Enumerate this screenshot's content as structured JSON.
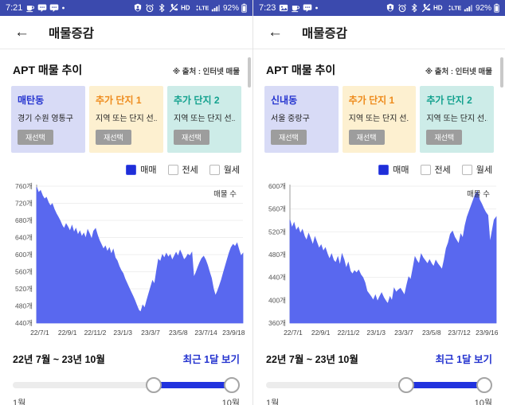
{
  "colors": {
    "statusbar_bg": "#3b4aae",
    "chart_fill": "#5968ef",
    "slider_blue": "#2133de",
    "link_blue": "#2433cf",
    "checkbox_checked": "#1f2ed8",
    "reselect_button_bg": "#9d9d9d"
  },
  "panels": [
    {
      "status": {
        "time": "7:21",
        "battery": "92%",
        "left_icons": [
          "coffee",
          "chat",
          "chat",
          "dot"
        ],
        "right_icons": [
          "shield",
          "alarm",
          "bluetooth",
          "mute",
          "hd",
          "lte",
          "signal"
        ]
      },
      "header": {
        "back_icon": "←",
        "title": "매물증감"
      },
      "section": {
        "title": "APT 매물 추이",
        "source_note": "※ 출처 : 인터넷 매물"
      },
      "cards": [
        {
          "title": "매탄동",
          "subtitle": "경기 수원 영통구",
          "button": "재선택",
          "accent": "#2433cf",
          "bg": "#d8dbf6"
        },
        {
          "title": "추가 단지 1",
          "subtitle": "지역 또는 단지 선...",
          "button": "재선택",
          "accent": "#ee8b1c",
          "bg": "#fdf0d0"
        },
        {
          "title": "추가 단지 2",
          "subtitle": "지역 또는 단지 선...",
          "button": "재선택",
          "accent": "#12a18e",
          "bg": "#cdece8"
        }
      ],
      "legend": {
        "items": [
          {
            "label": "매매",
            "checked": true
          },
          {
            "label": "전세",
            "checked": false
          },
          {
            "label": "월세",
            "checked": false
          }
        ]
      },
      "period": {
        "range": "22년 7월 ~ 23년 10월",
        "recent_button": "최근 1달 보기"
      },
      "slider": {
        "min_label": "1월",
        "max_label": "10월",
        "start_pct": 62,
        "end_pct": 96.5
      }
    },
    {
      "status": {
        "time": "7:23",
        "battery": "92%",
        "left_icons": [
          "photo",
          "coffee",
          "chat",
          "dot"
        ],
        "right_icons": [
          "shield",
          "alarm",
          "bluetooth",
          "mute",
          "hd",
          "lte",
          "signal"
        ]
      },
      "header": {
        "back_icon": "←",
        "title": "매물증감"
      },
      "section": {
        "title": "APT 매물 추이",
        "source_note": "※ 출처 : 인터넷 매물"
      },
      "cards": [
        {
          "title": "신내동",
          "subtitle": "서울 중랑구",
          "button": "재선택",
          "accent": "#2433cf",
          "bg": "#d8dbf6"
        },
        {
          "title": "추가 단지 1",
          "subtitle": "지역 또는 단지 선...",
          "button": "재선택",
          "accent": "#ee8b1c",
          "bg": "#fdf0d0"
        },
        {
          "title": "추가 단지 2",
          "subtitle": "지역 또는 단지 선...",
          "button": "재선택",
          "accent": "#12a18e",
          "bg": "#cdece8"
        }
      ],
      "legend": {
        "items": [
          {
            "label": "매매",
            "checked": true
          },
          {
            "label": "전세",
            "checked": false
          },
          {
            "label": "월세",
            "checked": false
          }
        ]
      },
      "period": {
        "range": "22년 7월 ~ 23년 10월",
        "recent_button": "최근 1달 보기"
      },
      "slider": {
        "min_label": "1월",
        "max_label": "10월",
        "start_pct": 62,
        "end_pct": 96.5
      }
    }
  ],
  "chart_data": [
    {
      "type": "area",
      "title": "APT 매물 추이 - 매탄동 (매매)",
      "annotation": "매물 수",
      "xlabel": "",
      "ylabel": "매물 수",
      "unit": "개",
      "ylim": [
        440,
        760
      ],
      "yticks": [
        760,
        720,
        680,
        640,
        600,
        560,
        520,
        480,
        440
      ],
      "xticks": [
        "22/7/1",
        "22/9/1",
        "22/11/2",
        "23/1/3",
        "23/3/7",
        "23/5/8",
        "23/7/14",
        "23/9/18"
      ],
      "grid": true,
      "series": [
        {
          "name": "매매",
          "color": "#5968ef",
          "values": [
            758,
            745,
            750,
            738,
            730,
            734,
            722,
            714,
            719,
            706,
            696,
            688,
            679,
            668,
            661,
            672,
            664,
            655,
            668,
            652,
            661,
            646,
            655,
            642,
            650,
            638,
            658,
            648,
            636,
            655,
            661,
            645,
            633,
            623,
            613,
            620,
            607,
            616,
            601,
            612,
            593,
            586,
            573,
            563,
            556,
            543,
            533,
            523,
            513,
            503,
            493,
            481,
            470,
            466,
            482,
            475,
            492,
            508,
            524,
            539,
            531,
            562,
            589,
            584,
            600,
            592,
            603,
            594,
            600,
            587,
            596,
            605,
            596,
            610,
            600,
            588,
            593,
            601,
            597,
            605,
            547,
            557,
            570,
            581,
            591,
            596,
            588,
            575,
            559,
            545,
            520,
            504,
            514,
            527,
            541,
            557,
            573,
            589,
            604,
            617,
            624,
            619,
            627,
            611,
            597,
            603
          ]
        }
      ]
    },
    {
      "type": "area",
      "title": "APT 매물 추이 - 신내동 (매매)",
      "annotation": "매물 수",
      "xlabel": "",
      "ylabel": "매물 수",
      "unit": "개",
      "ylim": [
        360,
        600
      ],
      "yticks": [
        600,
        560,
        520,
        480,
        440,
        400,
        360
      ],
      "xticks": [
        "22/7/1",
        "22/9/1",
        "22/11/2",
        "23/1/3",
        "23/3/7",
        "23/5/8",
        "23/7/12",
        "23/9/16"
      ],
      "grid": true,
      "series": [
        {
          "name": "매매",
          "color": "#5968ef",
          "values": [
            541,
            527,
            536,
            522,
            528,
            517,
            524,
            512,
            505,
            517,
            507,
            497,
            511,
            501,
            491,
            497,
            486,
            492,
            481,
            472,
            481,
            470,
            466,
            476,
            461,
            481,
            471,
            456,
            466,
            451,
            446,
            452,
            448,
            453,
            445,
            440,
            431,
            416,
            411,
            406,
            400,
            409,
            398,
            406,
            413,
            405,
            399,
            394,
            406,
            399,
            421,
            414,
            418,
            421,
            415,
            409,
            426,
            441,
            436,
            456,
            476,
            469,
            464,
            481,
            474,
            469,
            464,
            471,
            464,
            459,
            470,
            464,
            459,
            454,
            471,
            491,
            501,
            516,
            521,
            511,
            505,
            499,
            516,
            509,
            531,
            546,
            556,
            566,
            576,
            586,
            591,
            576,
            569,
            561,
            554,
            549,
            501,
            521,
            541,
            546
          ]
        }
      ]
    }
  ]
}
